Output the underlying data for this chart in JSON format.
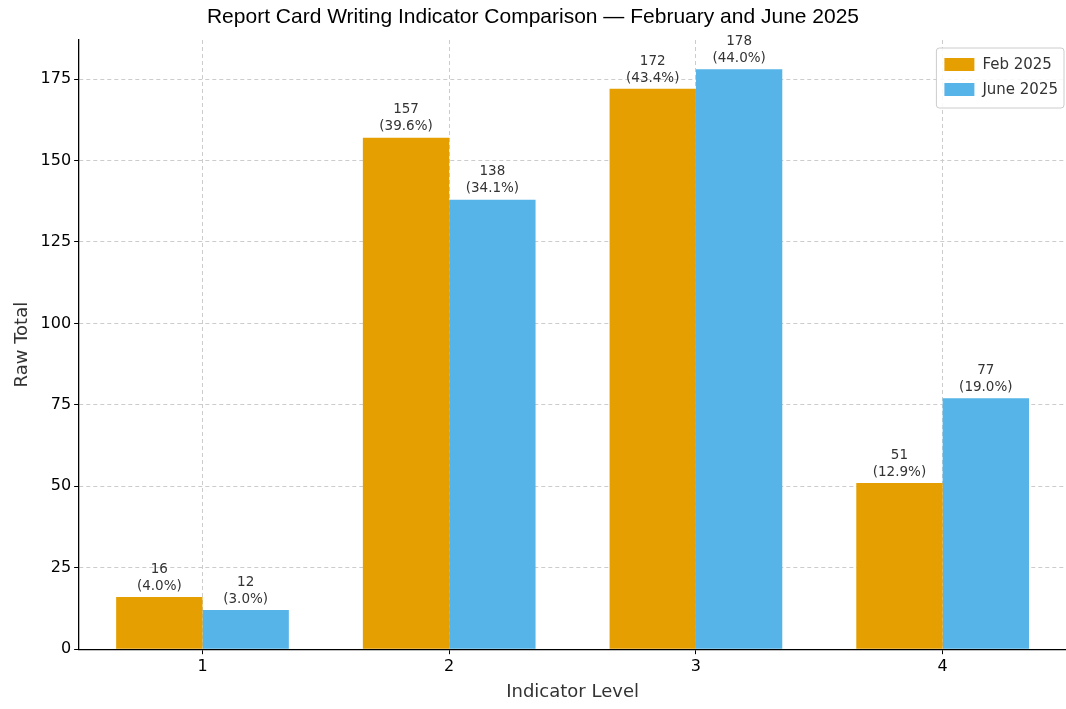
{
  "chart_data": {
    "type": "bar",
    "title": "Report Card Writing Indicator Comparison — February and June 2025",
    "xlabel": "Indicator Level",
    "ylabel": "Raw Total",
    "categories": [
      "1",
      "2",
      "3",
      "4"
    ],
    "series": [
      {
        "name": "Feb 2025",
        "color": "#e69f00",
        "values": [
          16,
          157,
          172,
          51
        ],
        "value_labels": [
          "16\n(4.0%)",
          "157\n(39.6%)",
          "172\n(43.4%)",
          "51\n(12.9%)"
        ]
      },
      {
        "name": "June 2025",
        "color": "#56b4e9",
        "values": [
          12,
          138,
          178,
          77
        ],
        "value_labels": [
          "12\n(3.0%)",
          "138\n(34.1%)",
          "178\n(44.0%)",
          "77\n(19.0%)"
        ]
      }
    ],
    "ylim": [
      0,
      187
    ],
    "yticks": [
      0,
      25,
      50,
      75,
      100,
      125,
      150,
      175
    ],
    "grid": true,
    "legend": "top right"
  }
}
